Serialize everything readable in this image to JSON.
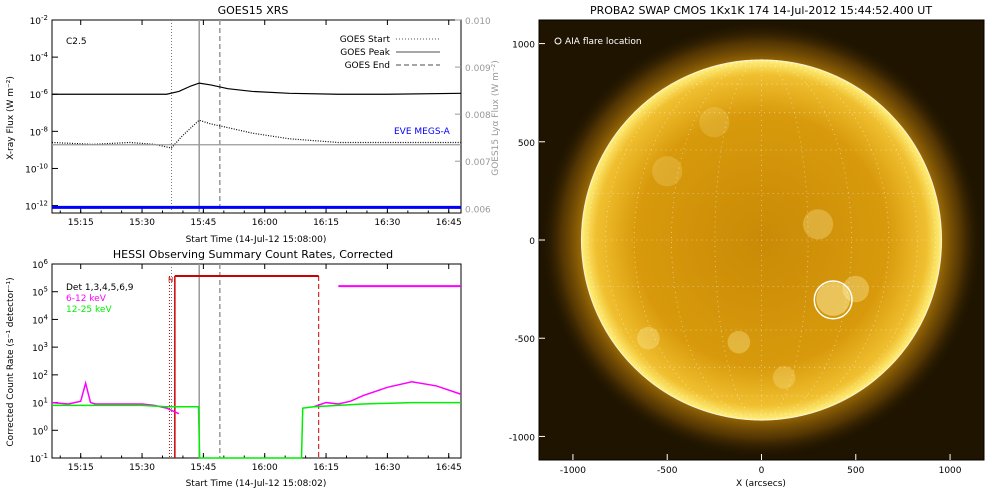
{
  "chart_data": [
    {
      "type": "line",
      "title": "GOES15 XRS",
      "xlabel": "Start Time (14-Jul-12 15:08:00)",
      "ylabel": "X-ray Flux (W m⁻²)",
      "y2label": "GOES15 Lyα Flux (W m⁻²)",
      "x_range": [
        15.133,
        16.8
      ],
      "x_ticks": [
        {
          "v": 15.25,
          "label": "15:15"
        },
        {
          "v": 15.5,
          "label": "15:30"
        },
        {
          "v": 15.75,
          "label": "15:45"
        },
        {
          "v": 16.0,
          "label": "16:00"
        },
        {
          "v": 16.25,
          "label": "16:15"
        },
        {
          "v": 16.5,
          "label": "16:30"
        },
        {
          "v": 16.75,
          "label": "16:45"
        }
      ],
      "y_scale": "log",
      "y_range_exp": [
        -12.4,
        -2
      ],
      "y_ticks": [
        {
          "e": -2,
          "label": "10",
          "sup": "-2"
        },
        {
          "e": -4,
          "label": "10",
          "sup": "-4"
        },
        {
          "e": -6,
          "label": "10",
          "sup": "-6"
        },
        {
          "e": -8,
          "label": "10",
          "sup": "-8"
        },
        {
          "e": -10,
          "label": "10",
          "sup": "-10"
        },
        {
          "e": -12,
          "label": "10",
          "sup": "-12"
        }
      ],
      "y2_range": [
        0.0059,
        0.01
      ],
      "y2_ticks": [
        "0.010",
        "0.009",
        "0.008",
        "0.007",
        "0.006"
      ],
      "y2_tick_values": [
        0.01,
        0.009,
        0.008,
        0.007,
        0.006
      ],
      "flare_class": "C2.5",
      "legend": [
        "GOES Start",
        "GOES Peak",
        "GOES End"
      ],
      "eve_label": "EVE MEGS-A",
      "events": {
        "start": 15.62,
        "peak": 15.733,
        "end": 15.817
      },
      "series": [
        {
          "name": "long",
          "color": "#000000",
          "x": [
            15.133,
            15.3,
            15.5,
            15.6,
            15.65,
            15.7,
            15.733,
            15.78,
            15.85,
            15.95,
            16.1,
            16.3,
            16.5,
            16.8
          ],
          "y_exp": [
            -6.0,
            -6.0,
            -6.0,
            -6.0,
            -5.85,
            -5.55,
            -5.4,
            -5.5,
            -5.7,
            -5.85,
            -5.95,
            -6.0,
            -6.0,
            -5.95
          ]
        },
        {
          "name": "short",
          "color": "#000000",
          "x": [
            15.133,
            15.3,
            15.45,
            15.55,
            15.62,
            15.66,
            15.7,
            15.733,
            15.78,
            15.85,
            15.95,
            16.1,
            16.3,
            16.5,
            16.8
          ],
          "y_exp": [
            -8.6,
            -8.7,
            -8.6,
            -8.7,
            -8.9,
            -8.3,
            -7.8,
            -7.4,
            -7.6,
            -7.8,
            -8.1,
            -8.4,
            -8.6,
            -8.6,
            -8.6
          ]
        },
        {
          "name": "lya",
          "color": "#999999",
          "x": [
            15.133,
            16.8
          ],
          "y2": [
            0.00735,
            0.00735
          ]
        },
        {
          "name": "EVE MEGS-A",
          "color": "#0000ff",
          "x": [
            15.133,
            16.8
          ],
          "y_exp": [
            -12.1,
            -12.1
          ]
        }
      ]
    },
    {
      "type": "line",
      "title": "HESSI Observing Summary Count Rates, Corrected",
      "xlabel": "Start Time (14-Jul-12 15:08:02)",
      "ylabel": "Corrected Count Rate (s⁻¹ detector⁻¹)",
      "x_range": [
        15.133,
        16.8
      ],
      "x_ticks": [
        {
          "v": 15.25,
          "label": "15:15"
        },
        {
          "v": 15.5,
          "label": "15:30"
        },
        {
          "v": 15.75,
          "label": "15:45"
        },
        {
          "v": 16.0,
          "label": "16:00"
        },
        {
          "v": 16.25,
          "label": "16:15"
        },
        {
          "v": 16.5,
          "label": "16:30"
        },
        {
          "v": 16.75,
          "label": "16:45"
        }
      ],
      "y_scale": "log",
      "y_range_exp": [
        -1,
        6
      ],
      "y_ticks": [
        {
          "e": 6,
          "label": "10",
          "sup": "6"
        },
        {
          "e": 5,
          "label": "10",
          "sup": "5"
        },
        {
          "e": 4,
          "label": "10",
          "sup": "4"
        },
        {
          "e": 3,
          "label": "10",
          "sup": "3"
        },
        {
          "e": 2,
          "label": "10",
          "sup": "2"
        },
        {
          "e": 1,
          "label": "10",
          "sup": "1"
        },
        {
          "e": 0,
          "label": "10",
          "sup": "0"
        },
        {
          "e": -1,
          "label": "10",
          "sup": "-1"
        }
      ],
      "legend": [
        {
          "label": "Det 1,3,4,5,6,9",
          "color": "#000000"
        },
        {
          "label": "6-12 keV",
          "color": "#ff00ff"
        },
        {
          "label": "12-25 keV",
          "color": "#00ee00"
        }
      ],
      "night_label": "N",
      "events": {
        "start": 15.62,
        "peak": 15.733,
        "end": 15.817
      },
      "night": [
        15.65,
        16.22
      ],
      "series": [
        {
          "name": "6-12 keV",
          "color": "#ff00ff",
          "x": [
            15.133,
            15.2,
            15.25,
            15.27,
            15.29,
            15.31,
            15.4,
            15.5,
            15.55,
            15.6,
            15.65
          ],
          "y_exp": [
            1.0,
            0.95,
            1.05,
            1.7,
            1.0,
            0.95,
            0.95,
            0.95,
            0.9,
            0.8,
            0.6
          ]
        },
        {
          "name": "6-12 keV (after)",
          "color": "#ff00ff",
          "x": [
            16.2,
            16.25,
            16.3,
            16.35,
            16.4,
            16.5,
            16.6,
            16.7,
            16.8
          ],
          "y_exp": [
            0.85,
            1.0,
            0.95,
            1.05,
            1.25,
            1.55,
            1.75,
            1.6,
            1.3
          ]
        },
        {
          "name": "12-25 keV",
          "color": "#00ee00",
          "x": [
            15.133,
            15.3,
            15.5,
            15.6,
            15.65,
            15.73,
            15.735,
            16.15,
            16.155,
            16.2,
            16.4,
            16.6,
            16.8
          ],
          "y_exp": [
            0.9,
            0.9,
            0.9,
            0.85,
            0.85,
            0.85,
            -1,
            -1,
            0.8,
            0.85,
            0.95,
            1.0,
            1.0
          ]
        },
        {
          "name": "night (pink)",
          "color": "#ff00ff",
          "x": [
            16.3,
            16.8
          ],
          "y_exp": [
            5.2,
            5.2
          ]
        }
      ]
    },
    {
      "type": "heatmap",
      "title": "PROBA2 SWAP CMOS 1Kx1K 174 14-Jul-2012 15:44:52.400 UT",
      "xlabel": "X (arcsecs)",
      "ylabel": "",
      "x_range": [
        -1180,
        1180
      ],
      "y_range": [
        -1120,
        1120
      ],
      "x_ticks": [
        -1000,
        -500,
        0,
        500,
        1000
      ],
      "y_ticks": [
        1000,
        500,
        0,
        -500,
        -1000
      ],
      "solar_radius": 955,
      "flare_location_label": "AIA flare location",
      "flare_location": [
        380,
        -305
      ],
      "flare_circle_radius": 100
    }
  ]
}
